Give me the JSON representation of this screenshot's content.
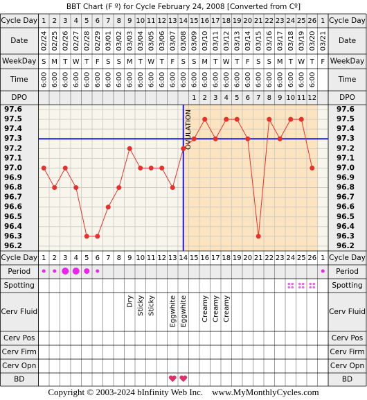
{
  "row_labels": [
    "Cycle Day",
    "Date",
    "WeekDay",
    "Time",
    "DPO",
    "Cycle Day",
    "Period",
    "Spotting",
    "Cerv Fluid",
    "Cerv Pos",
    "Cerv Firm",
    "Cerv Opn",
    "BD"
  ],
  "copyright": "Copyright © 2003-2024 bInfinity Web Inc.    www.MyMonthlyCycles.com",
  "chart_data": {
    "type": "line",
    "title": "BBT Chart (F º) for Cycle February 24, 2008  [Converted from Cº]",
    "categories": [
      1,
      2,
      3,
      4,
      5,
      6,
      7,
      8,
      9,
      10,
      11,
      12,
      13,
      14,
      15,
      16,
      17,
      18,
      19,
      20,
      21,
      22,
      23,
      24,
      25,
      26,
      1
    ],
    "dates": [
      "02/24",
      "02/25",
      "02/26",
      "02/27",
      "02/28",
      "02/29",
      "03/01",
      "03/02",
      "03/03",
      "03/04",
      "03/05",
      "03/06",
      "03/07",
      "03/08",
      "03/09",
      "03/10",
      "03/11",
      "03/12",
      "03/13",
      "03/14",
      "03/15",
      "03/16",
      "03/17",
      "03/18",
      "03/19",
      "03/20",
      "03/21"
    ],
    "weekdays": [
      "S",
      "M",
      "T",
      "W",
      "T",
      "F",
      "S",
      "S",
      "M",
      "T",
      "W",
      "T",
      "F",
      "S",
      "S",
      "M",
      "T",
      "W",
      "T",
      "F",
      "S",
      "S",
      "M",
      "T",
      "W",
      "T",
      "F"
    ],
    "times": [
      "6:00",
      "6:00",
      "6:00",
      "6:00",
      "6:00",
      "6:00",
      "6:00",
      "6:00",
      "6:00",
      "6:00",
      "6:00",
      "6:00",
      "6:00",
      "6:00",
      "6:00",
      "6:00",
      "6:00",
      "6:00",
      "6:00",
      "6:00",
      "6:00",
      "6:00",
      "6:00",
      "6:00",
      "6:00",
      "6:00",
      null
    ],
    "dpo": [
      null,
      null,
      null,
      null,
      null,
      null,
      null,
      null,
      null,
      null,
      null,
      null,
      null,
      null,
      1,
      2,
      3,
      4,
      5,
      6,
      7,
      8,
      9,
      10,
      11,
      12,
      null
    ],
    "cerv_fluid": [
      null,
      null,
      null,
      null,
      null,
      null,
      null,
      null,
      "Dry",
      "Sticky",
      "Sticky",
      null,
      "Eggwhite",
      "Eggwhite",
      null,
      "Creamy",
      "Creamy",
      "Creamy",
      null,
      null,
      null,
      null,
      null,
      null,
      null,
      null,
      null
    ],
    "series": [
      {
        "color": "#e8302a",
        "values": [
          97.0,
          96.8,
          97.0,
          96.8,
          96.3,
          96.3,
          96.6,
          96.8,
          97.2,
          97.0,
          97.0,
          97.0,
          96.8,
          97.2,
          97.3,
          97.5,
          97.3,
          97.5,
          97.5,
          97.3,
          96.3,
          97.5,
          97.3,
          97.5,
          97.5,
          97.0,
          null
        ]
      }
    ],
    "coverline": 97.3,
    "coverline_color": "#1a1adf",
    "ovulation_label": "OVULATION",
    "ylim": [
      96.15,
      97.65
    ],
    "yticks": [
      97.6,
      97.5,
      97.4,
      97.3,
      97.2,
      97.1,
      {
        "value": 97,
        "label": "97.0"
      },
      96.9,
      96.8,
      96.7,
      96.6,
      96.5,
      96.4,
      96.3,
      96.2
    ],
    "grid": true
  }
}
